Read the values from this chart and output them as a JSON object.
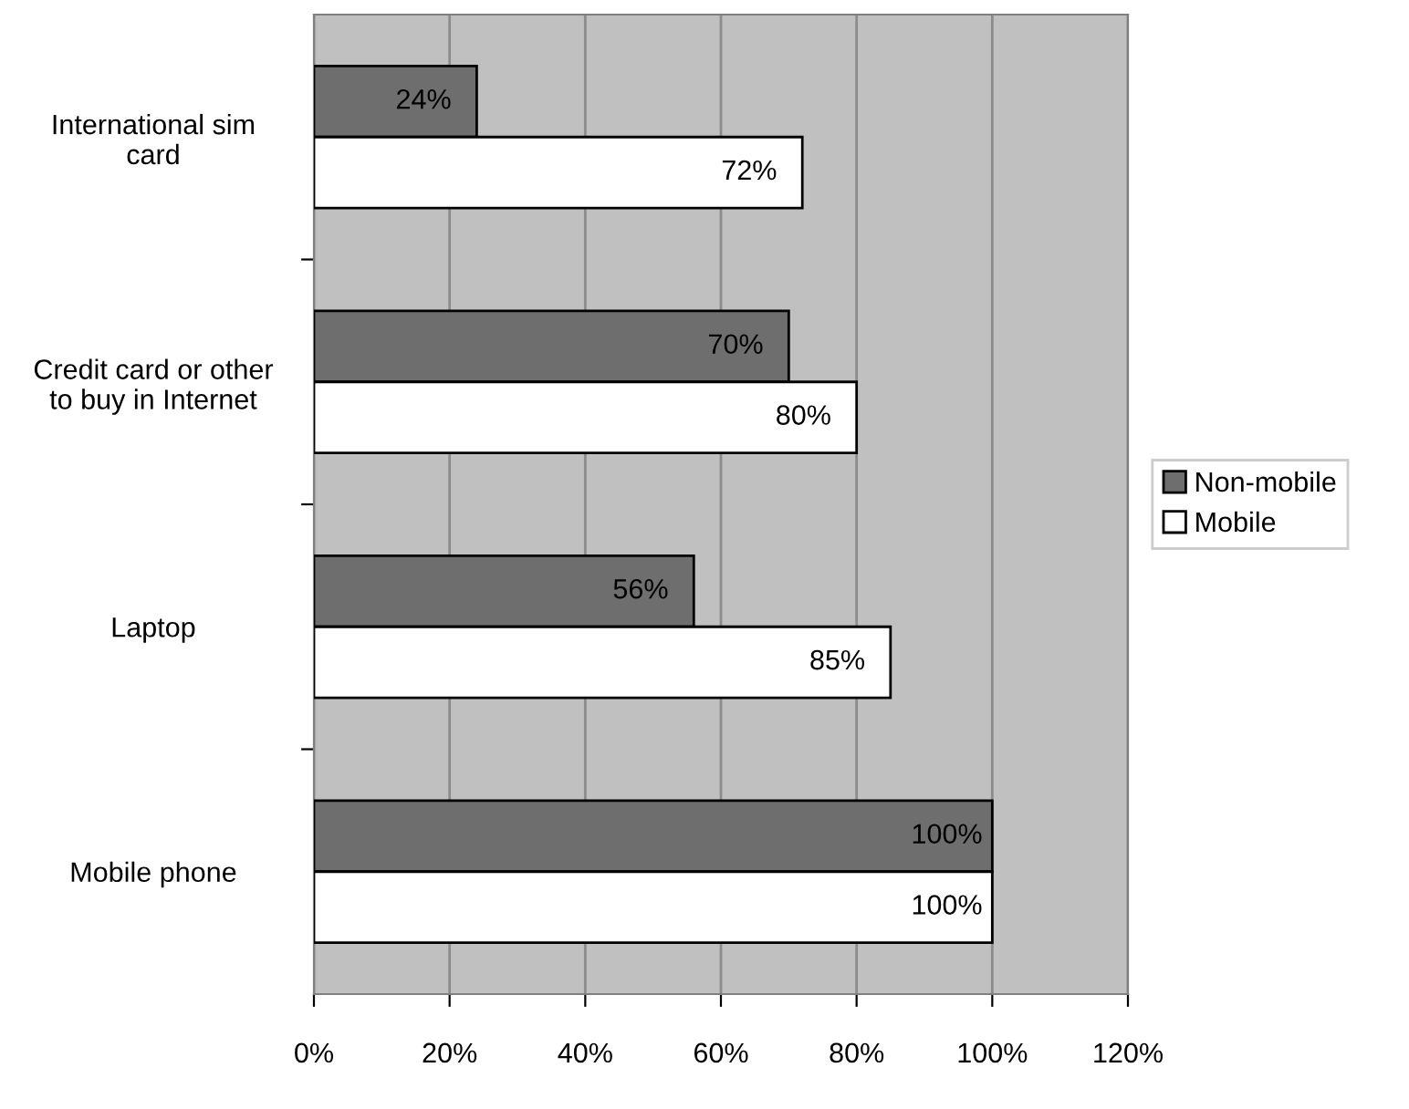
{
  "chart_data": {
    "type": "bar",
    "orientation": "horizontal",
    "categories": [
      "International sim\ncard",
      "Credit card or other\nto buy in Internet",
      "Laptop",
      "Mobile phone"
    ],
    "series": [
      {
        "name": "Non-mobile",
        "color": "#6e6e6e",
        "values": [
          24,
          70,
          56,
          100
        ],
        "value_labels": [
          "24%",
          "70%",
          "56%",
          "100%"
        ]
      },
      {
        "name": "Mobile",
        "color": "#ffffff",
        "values": [
          72,
          80,
          85,
          100
        ],
        "value_labels": [
          "72%",
          "80%",
          "85%",
          "100%"
        ]
      }
    ],
    "xlim": [
      0,
      120
    ],
    "xticks": [
      {
        "value": 0,
        "label": "0%"
      },
      {
        "value": 20,
        "label": "20%"
      },
      {
        "value": 40,
        "label": "40%"
      },
      {
        "value": 60,
        "label": "60%"
      },
      {
        "value": 80,
        "label": "80%"
      },
      {
        "value": 100,
        "label": "100%"
      },
      {
        "value": 120,
        "label": "120%"
      }
    ],
    "grid": "x",
    "legend": "right"
  }
}
